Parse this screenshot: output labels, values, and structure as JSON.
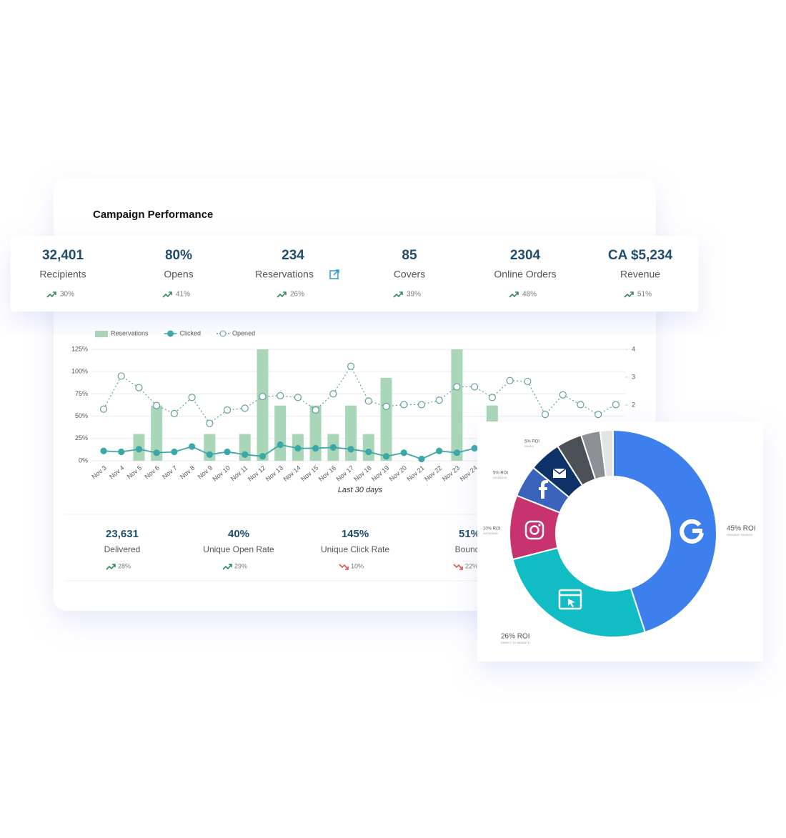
{
  "header": {
    "title": "Campaign Performance"
  },
  "kpis": [
    {
      "value": "32,401",
      "label": "Recipients",
      "trend": "30%",
      "direction": "up"
    },
    {
      "value": "80%",
      "label": "Opens",
      "trend": "41%",
      "direction": "up"
    },
    {
      "value": "234",
      "label": "Reservations",
      "trend": "26%",
      "direction": "up"
    },
    {
      "value": "85",
      "label": "Covers",
      "trend": "39%",
      "direction": "up"
    },
    {
      "value": "2304",
      "label": "Online Orders",
      "trend": "48%",
      "direction": "up"
    },
    {
      "value": "CA $5,234",
      "label": "Revenue",
      "trend": "51%",
      "direction": "up"
    }
  ],
  "stats": [
    {
      "value": "23,631",
      "label": "Delivered",
      "trend": "28%",
      "direction": "up"
    },
    {
      "value": "40%",
      "label": "Unique Open Rate",
      "trend": "29%",
      "direction": "up"
    },
    {
      "value": "145%",
      "label": "Unique Click Rate",
      "trend": "10%",
      "direction": "down"
    },
    {
      "value": "51%",
      "label": "Bounce",
      "trend": "22%",
      "direction": "down"
    }
  ],
  "chart_data": [
    {
      "type": "combo",
      "x_label": "Last 30 days",
      "categories": [
        "Nov 3",
        "Nov 4",
        "Nov 5",
        "Nov 6",
        "Nov 7",
        "Nov 8",
        "Nov 9",
        "Nov 10",
        "Nov 11",
        "Nov 12",
        "Nov 13",
        "Nov 14",
        "Nov 15",
        "Nov 16",
        "Nov 17",
        "Nov 18",
        "Nov 19",
        "Nov 20",
        "Nov 21",
        "Nov 22",
        "Nov 23",
        "Nov 24",
        null,
        null,
        null,
        null,
        null,
        null,
        null,
        null
      ],
      "ylim": [
        0,
        125
      ],
      "yticks": [
        {
          "value": 0,
          "label": "0%"
        },
        {
          "value": 25,
          "label": "25%"
        },
        {
          "value": 50,
          "label": "50%"
        },
        {
          "value": 75,
          "label": "75%"
        },
        {
          "value": 100,
          "label": "100%"
        },
        {
          "value": 125,
          "label": "125%"
        }
      ],
      "y2lim": [
        0,
        4
      ],
      "y2ticks": [
        2,
        3,
        4
      ],
      "grid": true,
      "series": [
        {
          "name": "Reservations",
          "type": "bar",
          "color": "#a9d6b6",
          "values": [
            0,
            0,
            30,
            62,
            0,
            0,
            30,
            0,
            30,
            125,
            62,
            30,
            62,
            30,
            62,
            30,
            93,
            0,
            0,
            0,
            125,
            0,
            62,
            0,
            0,
            0,
            0,
            0,
            0,
            0
          ]
        },
        {
          "name": "Clicked",
          "type": "line",
          "style": "solid",
          "color": "#3aa7a9",
          "values": [
            11,
            10,
            13,
            9,
            10,
            16,
            7,
            10,
            7,
            5,
            18,
            14,
            14,
            15,
            13,
            10,
            5,
            9,
            2,
            11,
            9,
            14,
            null,
            null,
            null,
            null,
            null,
            null,
            null,
            null
          ]
        },
        {
          "name": "Opened",
          "type": "line",
          "style": "dotted",
          "color": "#5f9fa0",
          "values": [
            58,
            95,
            82,
            62,
            53,
            71,
            42,
            57,
            59,
            72,
            73,
            71,
            57,
            75,
            106,
            67,
            61,
            63,
            63,
            68,
            83,
            83,
            71,
            90,
            89,
            52,
            74,
            63,
            52,
            63
          ]
        }
      ]
    },
    {
      "type": "donut",
      "categories": [
        "ORGANIC SEARCH",
        "DIRECT TO WEBSITE",
        "INSTAGRAM",
        "FACEBOOK",
        "EMAILS",
        null,
        null,
        null
      ],
      "values": [
        45,
        26,
        10,
        5,
        5,
        4,
        3,
        2
      ],
      "value_labels": [
        "45% ROI",
        "26% ROI",
        "10% ROI",
        "5% ROI",
        "5% ROI",
        null,
        null,
        null
      ],
      "colors": [
        "#3d7fec",
        "#12bcc4",
        "#c7326f",
        "#3a63bb",
        "#0e3267",
        "#4c5158",
        "#8c9096",
        "#e3e3e3"
      ]
    }
  ]
}
